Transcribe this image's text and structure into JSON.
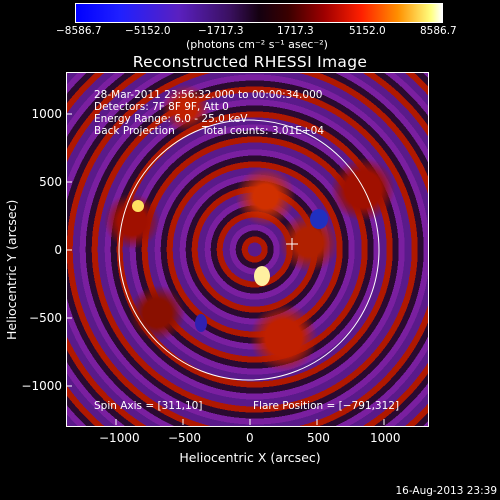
{
  "colorbar": {
    "ticks": [
      "−8586.7",
      "−5152.0",
      "−1717.3",
      "1717.3",
      "5152.0",
      "8586.7"
    ],
    "units": "(photons cm⁻² s⁻¹ asec⁻²)"
  },
  "title": "Reconstructed RHESSI Image",
  "annotations": {
    "line1": "28-Mar-2011 23:56:32.000 to 00:00:34.000",
    "line2": "Detectors: 7F 8F 9F, Att 0",
    "line3": "Energy Range: 6.0 - 25.0 keV",
    "line4a": "Back Projection",
    "line4b": "Total counts: 3.01E+04",
    "spin_axis": "Spin Axis = [311,10]",
    "flare_position": "Flare Position = [−791,312]"
  },
  "axes": {
    "xlabel": "Heliocentric X (arcsec)",
    "ylabel": "Heliocentric Y (arcsec)",
    "xticks": [
      "−1000",
      "−500",
      "0",
      "500",
      "1000"
    ],
    "yticks": [
      "1000",
      "500",
      "0",
      "−500",
      "−1000"
    ]
  },
  "datestamp": "16-Aug-2013 23:39"
}
